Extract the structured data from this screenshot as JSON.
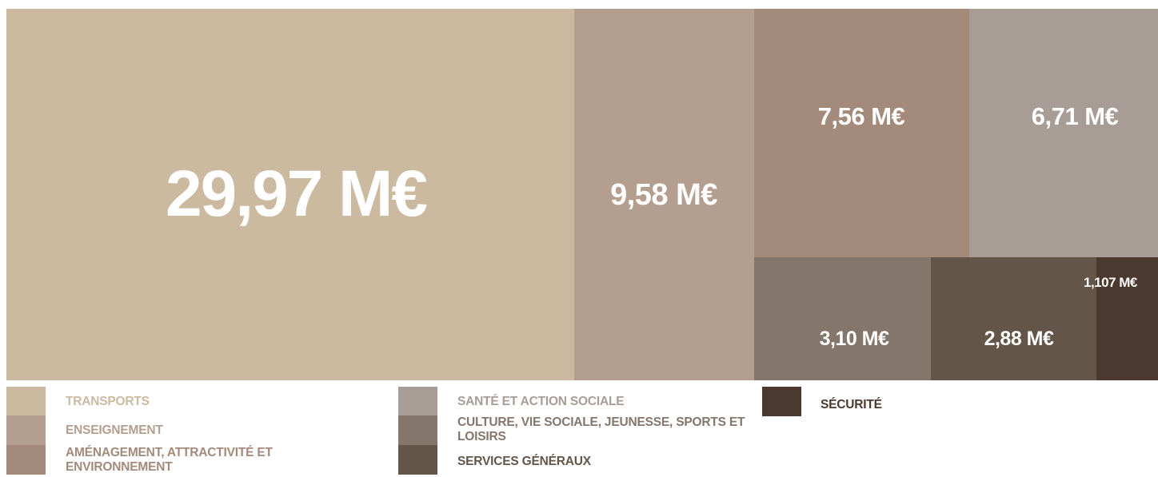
{
  "chart_data": {
    "type": "treemap",
    "unit": "M€",
    "items": [
      {
        "category": "TRANSPORTS",
        "value": 29.97,
        "label": "29,97 M€",
        "color": "#cbbaa0"
      },
      {
        "category": "ENSEIGNEMENT",
        "value": 9.58,
        "label": "9,58 M€",
        "color": "#b49e90"
      },
      {
        "category": "AMÉNAGEMENT, ATTRACTIVITÉ ET ENVIRONNEMENT",
        "value": 7.56,
        "label": "7,56 M€",
        "color": "#a38a7a"
      },
      {
        "category": "SANTÉ ET ACTION SOCIALE",
        "value": 6.71,
        "label": "6,71 M€",
        "color": "#a89c97"
      },
      {
        "category": "CULTURE, VIE SOCIALE, JEUNESSE, SPORTS ET LOISIRS",
        "value": 3.1,
        "label": "3,10 M€",
        "color": "#85766c"
      },
      {
        "category": "SERVICES GÉNÉRAUX",
        "value": 2.88,
        "label": "2,88 M€",
        "color": "#645549"
      },
      {
        "category": "SÉCURITÉ",
        "value": 1.107,
        "label": "1,107 M€",
        "color": "#4b392f"
      }
    ]
  }
}
